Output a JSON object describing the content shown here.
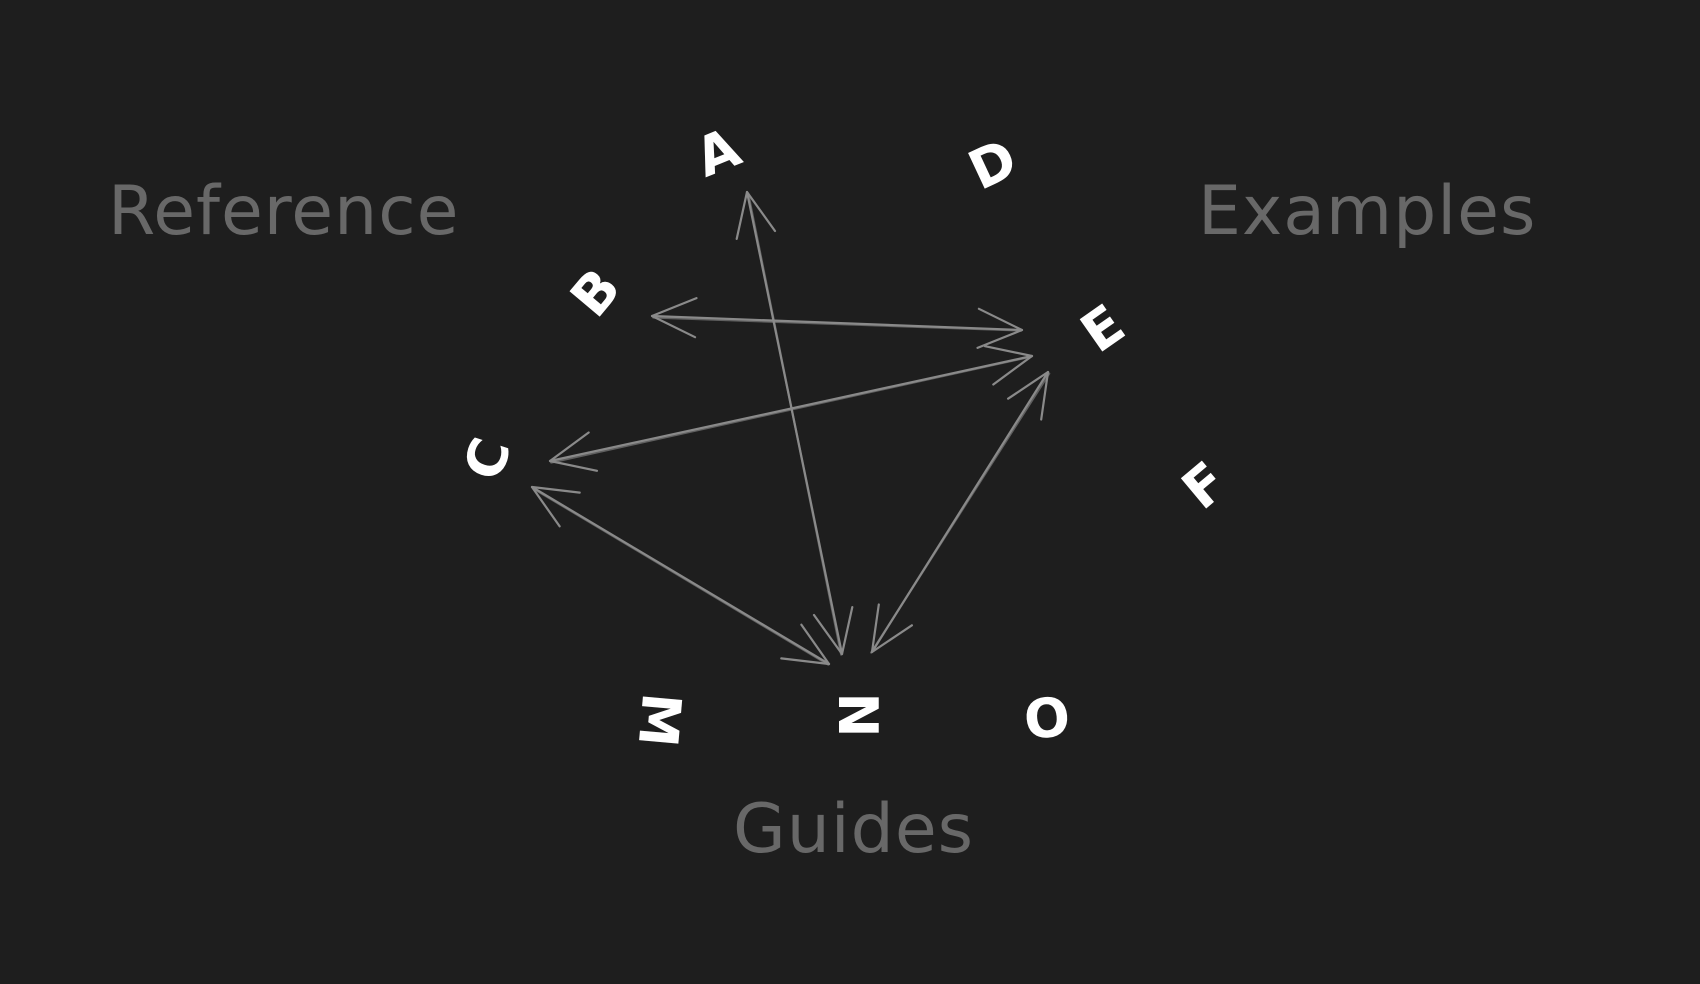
{
  "diagram": {
    "background": "#1e1e1e",
    "label_color": "#686868",
    "node_color": "#ffffff",
    "arrow_color": "#8a8a8a",
    "sections": {
      "reference": "Reference",
      "examples": "Examples",
      "guides": "Guides"
    },
    "nodes": {
      "a": "A",
      "b": "B",
      "c": "C",
      "d": "D",
      "e": "E",
      "f": "F",
      "m": "M",
      "n": "N",
      "o": "O"
    },
    "connections": [
      {
        "from": "A",
        "to": "N",
        "bidirectional": true
      },
      {
        "from": "B",
        "to": "E",
        "bidirectional": true
      },
      {
        "from": "C",
        "to": "E",
        "bidirectional": true
      },
      {
        "from": "C",
        "to": "N",
        "bidirectional": true
      },
      {
        "from": "E",
        "to": "N",
        "bidirectional": true
      }
    ]
  }
}
